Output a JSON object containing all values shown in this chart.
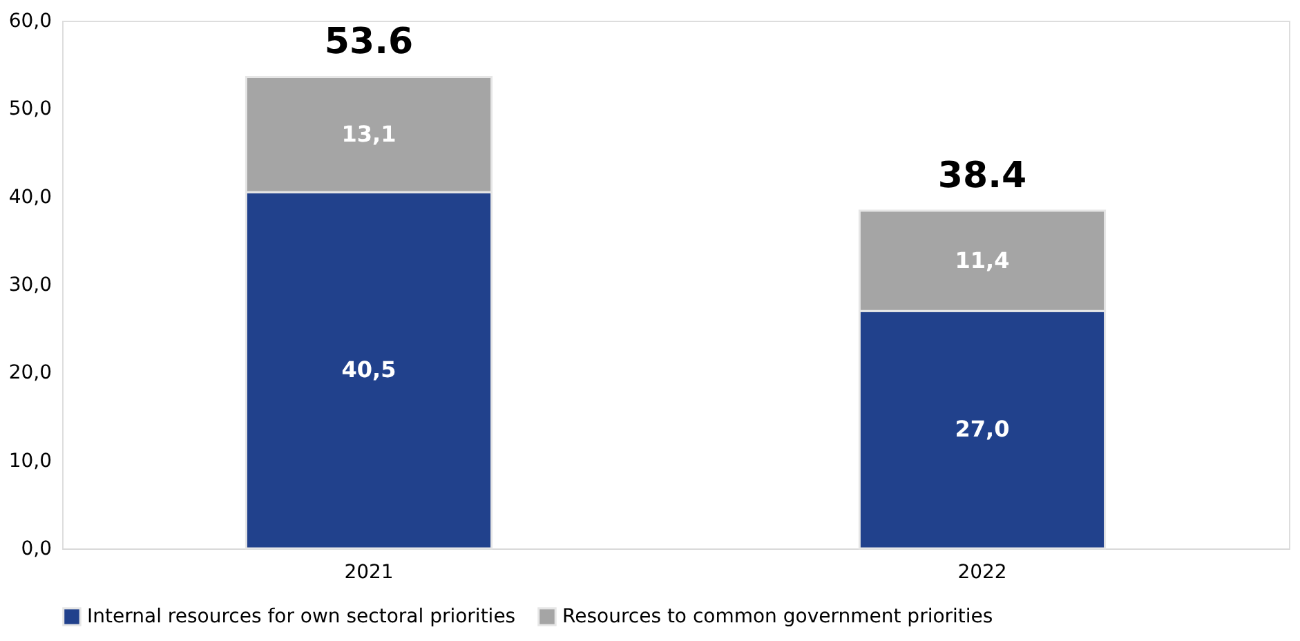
{
  "chart_data": {
    "type": "bar",
    "stacked": true,
    "categories": [
      "2021",
      "2022"
    ],
    "series": [
      {
        "name": "Internal resources for own sectoral priorities",
        "color": "#21418c",
        "values": [
          40.5,
          27.0
        ],
        "value_labels": [
          "40,5",
          "27,0"
        ]
      },
      {
        "name": "Resources to common government priorities",
        "color": "#a5a5a5",
        "values": [
          13.1,
          11.4
        ],
        "value_labels": [
          "13,1",
          "11,4"
        ]
      }
    ],
    "totals": [
      "53.6",
      "38.4"
    ],
    "ylim": [
      0,
      60
    ],
    "yticks": [
      {
        "value": 0,
        "label": "0,0"
      },
      {
        "value": 10,
        "label": "10,0"
      },
      {
        "value": 20,
        "label": "20,0"
      },
      {
        "value": 30,
        "label": "30,0"
      },
      {
        "value": 40,
        "label": "40,0"
      },
      {
        "value": 50,
        "label": "50,0"
      },
      {
        "value": 60,
        "label": "60,0"
      }
    ],
    "grid": false,
    "legend": "bottom"
  }
}
